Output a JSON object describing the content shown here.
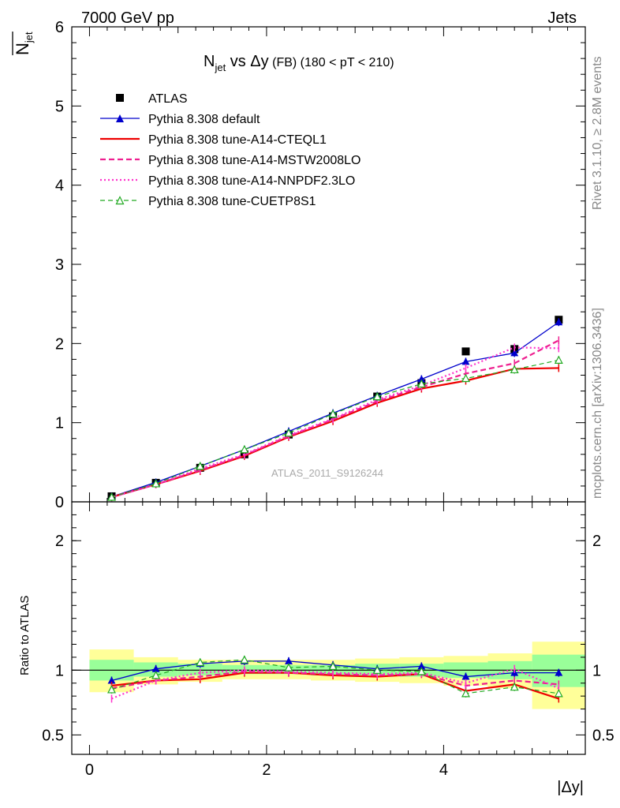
{
  "header": {
    "left": "7000 GeV pp",
    "right": "Jets"
  },
  "side_labels": {
    "top": "Rivet 3.1.10, ≥ 2.8M events",
    "bottom": "mcplots.cern.ch [arXiv:1306.3436]"
  },
  "watermark": "ATLAS_2011_S9126244",
  "chart_data": [
    {
      "type": "line",
      "panel": "main",
      "title": {
        "main": "N",
        "sub": "jet",
        "mid": " vs Δy",
        "small": " (FB)",
        "rest": " (180 < pT < 210)"
      },
      "ylabel": "N̅jet",
      "xlim": [
        -0.2,
        5.6
      ],
      "ylim": [
        0,
        6
      ],
      "yticks": [
        "0",
        "1",
        "2",
        "3",
        "4",
        "5",
        "6"
      ],
      "x": [
        0.25,
        0.75,
        1.25,
        1.75,
        2.25,
        2.75,
        3.25,
        3.75,
        4.25,
        4.8,
        5.3
      ],
      "series": [
        {
          "name": "ATLAS",
          "color": "#000000",
          "style": "markers",
          "values": [
            0.07,
            0.24,
            0.43,
            0.6,
            0.85,
            1.08,
            1.33,
            1.5,
            1.9,
            1.93,
            2.3
          ]
        },
        {
          "name": "Pythia 8.308 default",
          "color": "#0000cc",
          "style": "solid-thin",
          "marker": "triangle-filled",
          "values": [
            0.065,
            0.245,
            0.45,
            0.66,
            0.89,
            1.12,
            1.34,
            1.55,
            1.77,
            1.88,
            2.27
          ]
        },
        {
          "name": "Pythia 8.308 tune-A14-CTEQL1",
          "color": "#ee0000",
          "style": "solid-thick",
          "values": [
            0.06,
            0.22,
            0.39,
            0.58,
            0.82,
            1.02,
            1.25,
            1.43,
            1.53,
            1.68,
            1.69
          ]
        },
        {
          "name": "Pythia 8.308 tune-A14-MSTW2008LO",
          "color": "#ee2090",
          "style": "dashed",
          "values": [
            0.06,
            0.22,
            0.4,
            0.59,
            0.83,
            1.04,
            1.27,
            1.45,
            1.62,
            1.75,
            2.04
          ]
        },
        {
          "name": "Pythia 8.308 tune-A14-NNPDF2.3LO",
          "color": "#ff33cc",
          "style": "dotted",
          "values": [
            0.055,
            0.22,
            0.42,
            0.6,
            0.84,
            1.05,
            1.29,
            1.47,
            1.69,
            1.95,
            1.94
          ]
        },
        {
          "name": "Pythia 8.308 tune-CUETP8S1",
          "color": "#22aa22",
          "style": "dashed-thin",
          "marker": "triangle-open",
          "values": [
            0.06,
            0.23,
            0.45,
            0.66,
            0.87,
            1.11,
            1.33,
            1.49,
            1.56,
            1.67,
            1.79
          ]
        }
      ]
    },
    {
      "type": "line",
      "panel": "ratio",
      "ylabel": "Ratio to ATLAS",
      "xlabel": "|Δy|",
      "xlim": [
        -0.2,
        5.6
      ],
      "ylim": [
        0.35,
        2.3
      ],
      "yticks": [
        "0.5",
        "1",
        "2"
      ],
      "xticks": [
        "0",
        "2",
        "4"
      ],
      "reference": 1,
      "bands": {
        "x_edges": [
          0,
          0.5,
          1.0,
          1.5,
          2.0,
          2.5,
          3.0,
          3.5,
          4.0,
          4.5,
          5.0,
          5.6
        ],
        "yellow": [
          [
            0.83,
            1.16
          ],
          [
            0.89,
            1.1
          ],
          [
            0.91,
            1.08
          ],
          [
            0.93,
            1.08
          ],
          [
            0.93,
            1.08
          ],
          [
            0.92,
            1.08
          ],
          [
            0.91,
            1.09
          ],
          [
            0.9,
            1.1
          ],
          [
            0.88,
            1.11
          ],
          [
            0.86,
            1.13
          ],
          [
            0.7,
            1.22
          ]
        ],
        "green": [
          [
            0.92,
            1.08
          ],
          [
            0.95,
            1.06
          ],
          [
            0.96,
            1.05
          ],
          [
            0.97,
            1.04
          ],
          [
            0.97,
            1.04
          ],
          [
            0.96,
            1.04
          ],
          [
            0.96,
            1.05
          ],
          [
            0.95,
            1.05
          ],
          [
            0.94,
            1.06
          ],
          [
            0.93,
            1.07
          ],
          [
            0.87,
            1.12
          ]
        ]
      },
      "x": [
        0.25,
        0.75,
        1.25,
        1.75,
        2.25,
        2.75,
        3.25,
        3.75,
        4.25,
        4.8,
        5.3
      ],
      "series": [
        {
          "name": "Pythia 8.308 default",
          "color": "#0000cc",
          "style": "solid-thin",
          "marker": "triangle-filled",
          "values": [
            0.92,
            1.01,
            1.05,
            1.07,
            1.07,
            1.04,
            1.01,
            1.03,
            0.95,
            0.98,
            0.98
          ]
        },
        {
          "name": "Pythia 8.308 tune-A14-CTEQL1",
          "color": "#ee0000",
          "style": "solid-thick",
          "values": [
            0.88,
            0.92,
            0.93,
            0.98,
            0.98,
            0.96,
            0.95,
            0.97,
            0.84,
            0.89,
            0.78
          ]
        },
        {
          "name": "Pythia 8.308 tune-A14-MSTW2008LO",
          "color": "#ee2090",
          "style": "dashed",
          "values": [
            0.86,
            0.92,
            0.95,
            0.99,
            0.98,
            0.97,
            0.96,
            0.97,
            0.88,
            0.92,
            0.89
          ]
        },
        {
          "name": "Pythia 8.308 tune-A14-NNPDF2.3LO",
          "color": "#ff33cc",
          "style": "dotted",
          "values": [
            0.78,
            0.92,
            0.98,
            1.0,
            0.99,
            0.98,
            0.97,
            0.98,
            0.9,
            1.01,
            0.86
          ]
        },
        {
          "name": "Pythia 8.308 tune-CUETP8S1",
          "color": "#22aa22",
          "style": "dashed-thin",
          "marker": "triangle-open",
          "values": [
            0.85,
            0.96,
            1.06,
            1.08,
            1.02,
            1.03,
            1.0,
            0.99,
            0.82,
            0.87,
            0.82
          ]
        }
      ]
    }
  ]
}
